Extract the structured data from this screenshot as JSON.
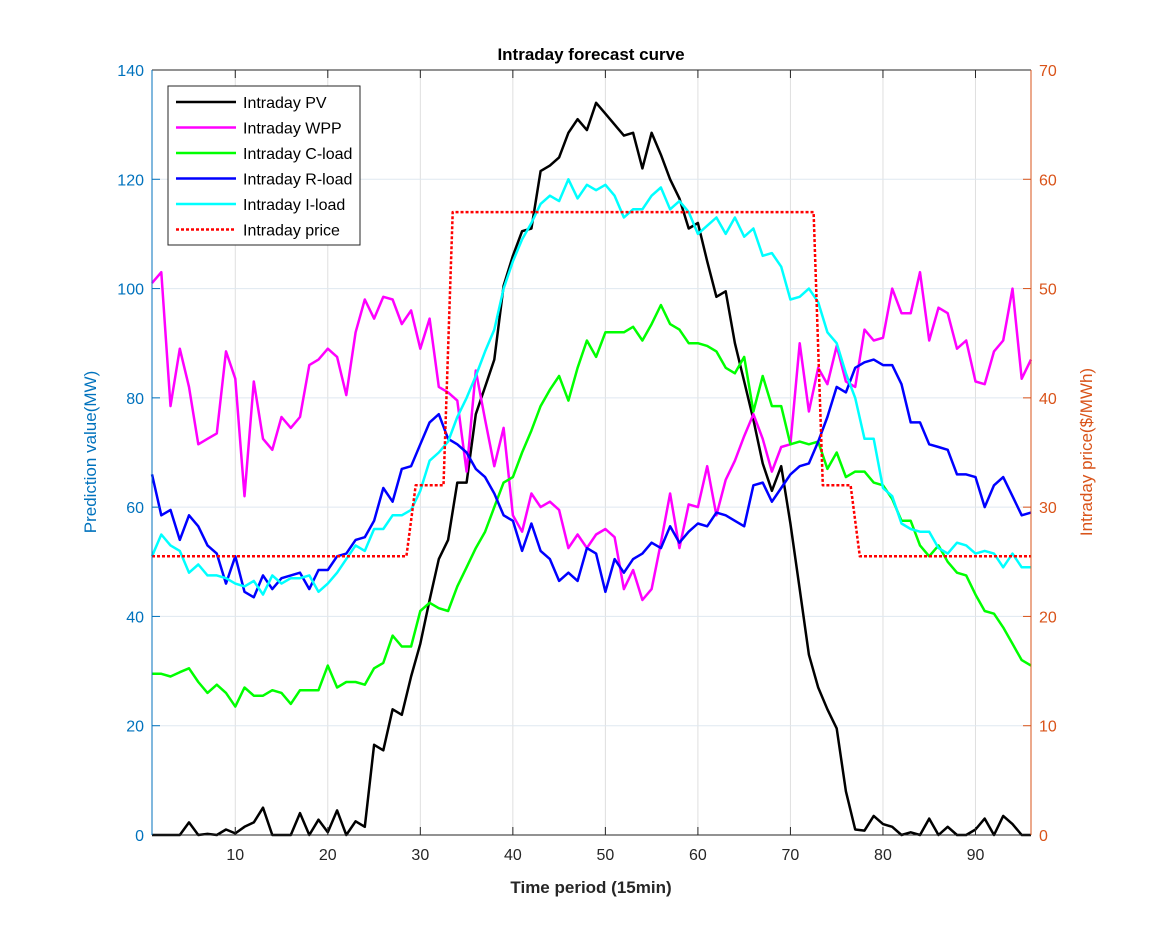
{
  "chart_data": {
    "type": "line",
    "title": "Intraday forecast curve",
    "xlabel": "Time period (15min)",
    "ylabel": "Prediction value(MW)",
    "y2label": "Intraday price($/MWh)",
    "xlim": [
      1,
      96
    ],
    "ylim": [
      0,
      140
    ],
    "y2lim": [
      0,
      70
    ],
    "xticks": [
      10,
      20,
      30,
      40,
      50,
      60,
      70,
      80,
      90
    ],
    "yticks": [
      0,
      20,
      40,
      60,
      80,
      100,
      120,
      140
    ],
    "y2ticks": [
      0,
      10,
      20,
      30,
      40,
      50,
      60,
      70
    ],
    "grid": true,
    "legend_position": "top-left",
    "left_axis_color": "#0072BD",
    "right_axis_color": "#D95319",
    "series": [
      {
        "name": "Intraday PV",
        "color": "#000000",
        "axis": "left",
        "values": [
          0,
          0,
          0,
          0,
          2.3,
          0,
          0.2,
          0,
          1,
          0.3,
          1.5,
          2.3,
          5,
          0,
          0,
          0,
          4,
          0,
          2.8,
          0.5,
          4.5,
          0,
          2.5,
          1.5,
          16.5,
          15.5,
          23,
          22,
          29,
          35,
          43,
          50.5,
          54,
          64.5,
          64.5,
          77,
          82,
          87,
          100.5,
          106,
          110.5,
          111,
          121.5,
          122.5,
          124,
          128.5,
          131,
          129,
          134,
          132,
          130,
          128,
          128.5,
          122,
          128.5,
          124.5,
          120,
          116.5,
          111,
          112,
          105,
          98.5,
          99.5,
          90,
          83,
          76,
          68,
          63,
          67.5,
          57,
          45,
          33,
          27,
          23,
          19.5,
          8,
          1,
          0.8,
          3.5,
          2,
          1.5,
          0,
          0.5,
          0,
          3,
          0,
          1.5,
          0,
          0,
          1,
          3,
          0,
          3.5,
          2,
          0,
          0
        ]
      },
      {
        "name": "Intraday WPP",
        "color": "#FF00FF",
        "axis": "left",
        "values": [
          101,
          103,
          78.5,
          89,
          82,
          71.5,
          72.5,
          73.5,
          88.5,
          83.5,
          62,
          83,
          72.5,
          70.5,
          76.5,
          74.5,
          76.5,
          86,
          87,
          89,
          87.5,
          80.5,
          92,
          98,
          94.5,
          98.5,
          98,
          93.5,
          96,
          89,
          94.5,
          82,
          81,
          79.5,
          66.5,
          85,
          76,
          67.5,
          74.5,
          58.5,
          55.5,
          62.5,
          60,
          61,
          59.5,
          52.5,
          55,
          52.5,
          55,
          56,
          54.5,
          45,
          48.5,
          43,
          45,
          53.5,
          62.5,
          52.5,
          60.5,
          60,
          67.5,
          58.5,
          65,
          68.5,
          73,
          77,
          72.5,
          66.5,
          71,
          71.5,
          90,
          77.5,
          85.5,
          82.5,
          89.5,
          83,
          82,
          92.5,
          90.5,
          91,
          100,
          95.5,
          95.5,
          103,
          90.5,
          96.5,
          95.5,
          89,
          90.5,
          83,
          82.5,
          88.5,
          90.5,
          100,
          83.5,
          87
        ]
      },
      {
        "name": "Intraday C-load",
        "color": "#00FF00",
        "axis": "left",
        "values": [
          29.5,
          29.5,
          29,
          29.8,
          30.5,
          28,
          26,
          27.5,
          26,
          23.5,
          27,
          25.5,
          25.5,
          26.5,
          26,
          24,
          26.5,
          26.5,
          26.5,
          31,
          27,
          28,
          28,
          27.5,
          30.5,
          31.5,
          36.5,
          34.5,
          34.5,
          41,
          42.5,
          41.5,
          41,
          45.5,
          49,
          52.5,
          55.5,
          60,
          64.5,
          65.5,
          70,
          74,
          78.5,
          81.5,
          84,
          79.5,
          85.5,
          90.5,
          87.5,
          92,
          92,
          92,
          93,
          90.5,
          93.5,
          97,
          93.5,
          92.5,
          90,
          90,
          89.5,
          88.5,
          85.5,
          84.5,
          87.5,
          77.5,
          84,
          78.5,
          78.5,
          71.5,
          72,
          71.5,
          72,
          67,
          70,
          65.5,
          66.5,
          66.5,
          64.5,
          64,
          61.5,
          57.5,
          57.5,
          53,
          51,
          53,
          50,
          48,
          47.5,
          44,
          41,
          40.5,
          38,
          35,
          32,
          31
        ]
      },
      {
        "name": "Intraday R-load",
        "color": "#0000FF",
        "axis": "left",
        "values": [
          66,
          58.5,
          59.5,
          54,
          58.5,
          56.5,
          53,
          51.5,
          46,
          51,
          44.5,
          43.5,
          47.5,
          45,
          47,
          47.5,
          48,
          45,
          48.5,
          48.5,
          51,
          51.5,
          54,
          54.5,
          57.5,
          63.5,
          61,
          67,
          67.5,
          71.5,
          75.5,
          77,
          72.5,
          71.5,
          70,
          67,
          65.5,
          62.5,
          58.5,
          57.5,
          52,
          57,
          52,
          50.5,
          46.5,
          48,
          46.5,
          52.5,
          51.5,
          44.5,
          50.5,
          48,
          50.5,
          51.5,
          53.5,
          52.5,
          56.5,
          53.5,
          55.5,
          57,
          56.5,
          59,
          58.5,
          57.5,
          56.5,
          64,
          64.5,
          61,
          63.5,
          66,
          67.5,
          68,
          72,
          76.5,
          82,
          81,
          85.5,
          86.5,
          87,
          86,
          86,
          82.5,
          75.5,
          75.5,
          71.5,
          71,
          70.5,
          66,
          66,
          65.5,
          60,
          64,
          65.5,
          62,
          58.5,
          59
        ]
      },
      {
        "name": "Intraday I-load",
        "color": "#00FFFF",
        "axis": "left",
        "values": [
          51,
          55,
          53,
          52,
          48,
          49.5,
          47.5,
          47.5,
          47,
          46,
          45.5,
          46.5,
          44,
          47.5,
          46,
          47,
          47,
          47.5,
          44.5,
          46,
          48,
          50.5,
          53,
          52,
          56,
          56,
          58.5,
          58.5,
          59.5,
          63,
          68.5,
          70,
          72,
          76.5,
          80,
          84,
          88.5,
          92.5,
          100,
          105,
          109,
          112,
          115.5,
          117,
          116,
          120,
          116.5,
          119,
          118,
          119,
          117,
          113,
          114.5,
          114.5,
          117,
          118.5,
          114.5,
          116,
          114,
          110,
          111.5,
          113,
          110,
          113,
          109.5,
          111,
          106,
          106.5,
          104,
          98,
          98.5,
          100,
          97.5,
          92,
          90,
          84.5,
          80,
          72.5,
          72.5,
          63.5,
          62,
          57,
          56,
          55.5,
          55.5,
          52.5,
          51.5,
          53.5,
          53,
          51.5,
          52,
          51.5,
          49,
          51.5,
          49,
          49
        ]
      },
      {
        "name": "Intraday price",
        "color": "#FF0000",
        "axis": "right",
        "dashed": true,
        "values": [
          25.5,
          25.5,
          25.5,
          25.5,
          25.5,
          25.5,
          25.5,
          25.5,
          25.5,
          25.5,
          25.5,
          25.5,
          25.5,
          25.5,
          25.5,
          25.5,
          25.5,
          25.5,
          25.5,
          25.5,
          25.5,
          25.5,
          25.5,
          25.5,
          25.5,
          25.5,
          25.5,
          25.5,
          32,
          32,
          32,
          32,
          57,
          57,
          57,
          57,
          57,
          57,
          57,
          57,
          57,
          57,
          57,
          57,
          57,
          57,
          57,
          57,
          57,
          57,
          57,
          57,
          57,
          57,
          57,
          57,
          57,
          57,
          57,
          57,
          57,
          57,
          57,
          57,
          57,
          57,
          57,
          57,
          57,
          57,
          57,
          57,
          32,
          32,
          32,
          32,
          25.5,
          25.5,
          25.5,
          25.5,
          25.5,
          25.5,
          25.5,
          25.5,
          25.5,
          25.5,
          25.5,
          25.5,
          25.5,
          25.5,
          25.5,
          25.5,
          25.5,
          25.5,
          25.5,
          25.5
        ]
      }
    ]
  }
}
